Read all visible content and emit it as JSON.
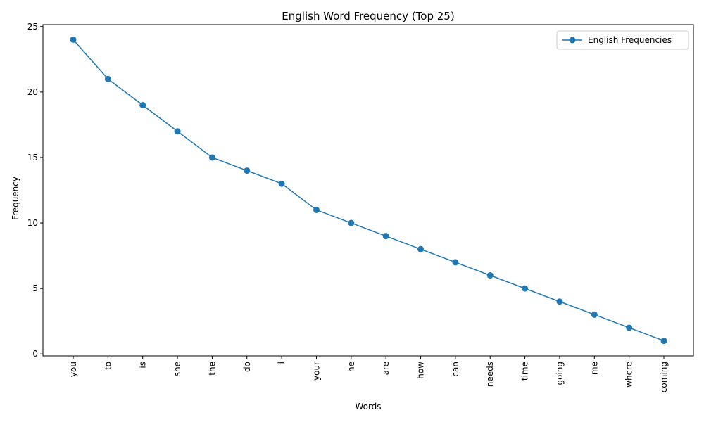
{
  "chart_data": {
    "type": "line",
    "title": "English Word Frequency (Top 25)",
    "xlabel": "Words",
    "ylabel": "Frequency",
    "categories": [
      "you",
      "to",
      "is",
      "she",
      "the",
      "do",
      "i",
      "your",
      "he",
      "are",
      "how",
      "can",
      "needs",
      "time",
      "going",
      "me",
      "where",
      "coming"
    ],
    "series": [
      {
        "name": "English Frequencies",
        "values": [
          24,
          21,
          19,
          17,
          15,
          14,
          13,
          11,
          10,
          9,
          8,
          7,
          6,
          5,
          4,
          3,
          2,
          1
        ],
        "color": "#1f77b4",
        "marker": "circle"
      }
    ],
    "ylim": [
      -0.15,
      25.15
    ],
    "yticks": [
      0,
      5,
      10,
      15,
      20,
      25
    ],
    "ytick_labels": [
      "0",
      "5",
      "10",
      "15",
      "20",
      "25"
    ],
    "xtick_rotation": "vertical",
    "grid": false,
    "legend": {
      "placement": "top-right"
    }
  }
}
